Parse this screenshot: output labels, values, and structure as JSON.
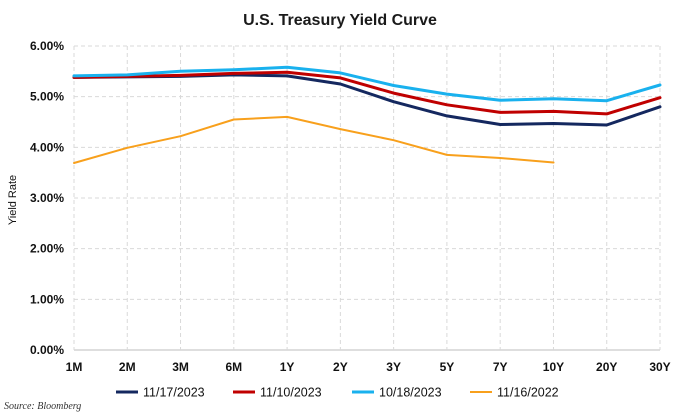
{
  "chart_data": {
    "type": "line",
    "title": "U.S. Treasury Yield Curve",
    "ylabel": "Yield Rate",
    "xlabel": "",
    "ylim": [
      0,
      6
    ],
    "grid": true,
    "legend_position": "bottom",
    "categories": [
      "1M",
      "2M",
      "3M",
      "6M",
      "1Y",
      "2Y",
      "3Y",
      "5Y",
      "7Y",
      "10Y",
      "20Y",
      "30Y"
    ],
    "y_ticks": [
      "0.00%",
      "1.00%",
      "2.00%",
      "3.00%",
      "4.00%",
      "5.00%",
      "6.00%"
    ],
    "series": [
      {
        "name": "11/17/2023",
        "color": "#14285f",
        "values": [
          5.38,
          5.39,
          5.4,
          5.43,
          5.41,
          5.25,
          4.9,
          4.62,
          4.45,
          4.47,
          4.44,
          4.8
        ]
      },
      {
        "name": "11/10/2023",
        "color": "#c00000",
        "values": [
          5.38,
          5.4,
          5.42,
          5.46,
          5.48,
          5.37,
          5.07,
          4.84,
          4.69,
          4.71,
          4.66,
          4.98
        ]
      },
      {
        "name": "10/18/2023",
        "color": "#19b1ee",
        "values": [
          5.41,
          5.43,
          5.5,
          5.53,
          5.58,
          5.47,
          5.22,
          5.05,
          4.93,
          4.96,
          4.92,
          5.23
        ]
      },
      {
        "name": "11/16/2022",
        "color": "#f8a01c",
        "values": [
          3.69,
          3.99,
          4.22,
          4.55,
          4.6,
          4.36,
          4.14,
          3.85,
          3.79,
          3.7,
          null,
          null
        ]
      }
    ]
  },
  "source": "Source: Bloomberg"
}
